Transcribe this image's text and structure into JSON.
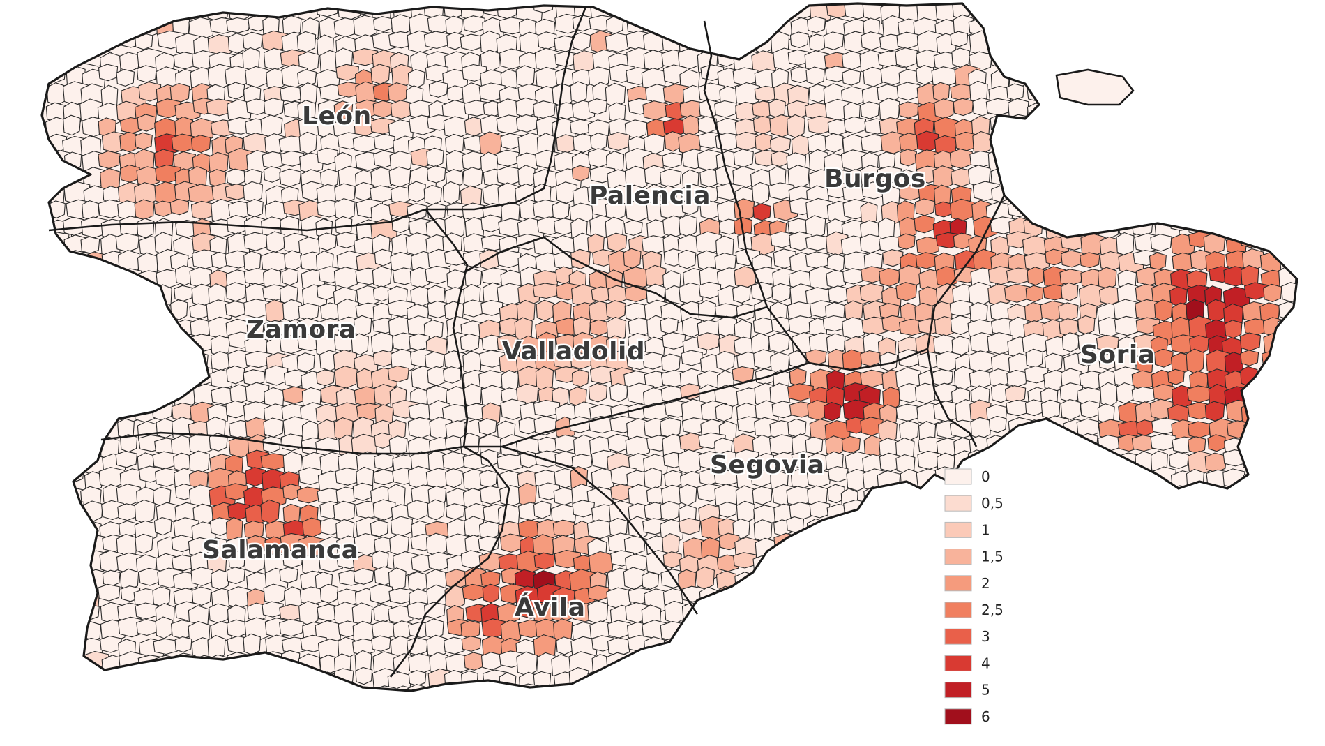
{
  "map": {
    "provinces": [
      {
        "id": "leon",
        "name": "León"
      },
      {
        "id": "palencia",
        "name": "Palencia"
      },
      {
        "id": "burgos",
        "name": "Burgos"
      },
      {
        "id": "zamora",
        "name": "Zamora"
      },
      {
        "id": "valladolid",
        "name": "Valladolid"
      },
      {
        "id": "soria",
        "name": "Soria"
      },
      {
        "id": "segovia",
        "name": "Segovia"
      },
      {
        "id": "salamanca",
        "name": "Salamanca"
      },
      {
        "id": "avila",
        "name": "Ávila"
      }
    ],
    "legend": {
      "classes": [
        {
          "label": "0",
          "color": "#fdf1ec"
        },
        {
          "label": "0,5",
          "color": "#fcdcd0"
        },
        {
          "label": "1",
          "color": "#fbcab8"
        },
        {
          "label": "1,5",
          "color": "#f8b39b"
        },
        {
          "label": "2",
          "color": "#f59b7d"
        },
        {
          "label": "2,5",
          "color": "#f07f5f"
        },
        {
          "label": "3",
          "color": "#e9604a"
        },
        {
          "label": "4",
          "color": "#d93a32"
        },
        {
          "label": "5",
          "color": "#c11f25"
        },
        {
          "label": "6",
          "color": "#a10f1c"
        }
      ]
    }
  }
}
